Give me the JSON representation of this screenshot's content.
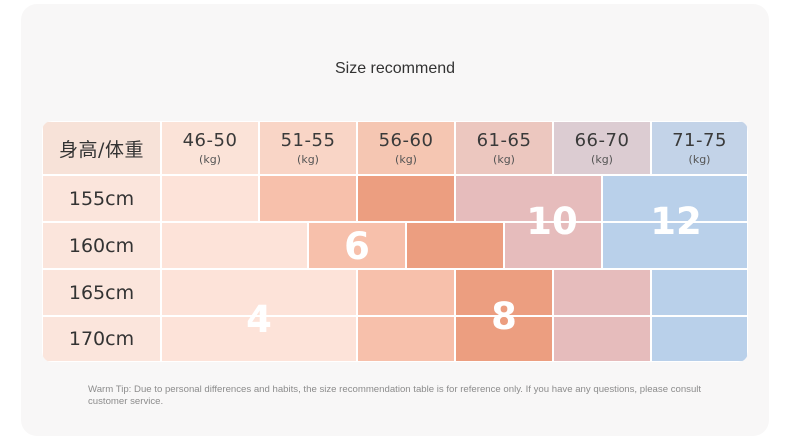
{
  "title": "Size recommend",
  "table": {
    "corner_label": "身高/体重",
    "weight_columns": [
      {
        "range": "46-50",
        "unit": "(kg)"
      },
      {
        "range": "51-55",
        "unit": "(kg)"
      },
      {
        "range": "56-60",
        "unit": "(kg)"
      },
      {
        "range": "61-65",
        "unit": "(kg)"
      },
      {
        "range": "66-70",
        "unit": "(kg)"
      },
      {
        "range": "71-75",
        "unit": "(kg)"
      }
    ],
    "height_rows": [
      "155cm",
      "160cm",
      "165cm",
      "170cm"
    ],
    "sizes": [
      "4",
      "6",
      "8",
      "10",
      "12"
    ]
  },
  "colors": {
    "header_bg": "#f7d6c8",
    "size_4": "#fde3d9",
    "size_6": "#f7c0ab",
    "size_8": "#ec9e80",
    "size_10": "#e6bcbc",
    "size_12": "#b9d0ea"
  },
  "warm_tip": "Warm Tip: Due to personal differences and habits, the size recommendation table is for reference only. If you have any questions, please consult customer service."
}
